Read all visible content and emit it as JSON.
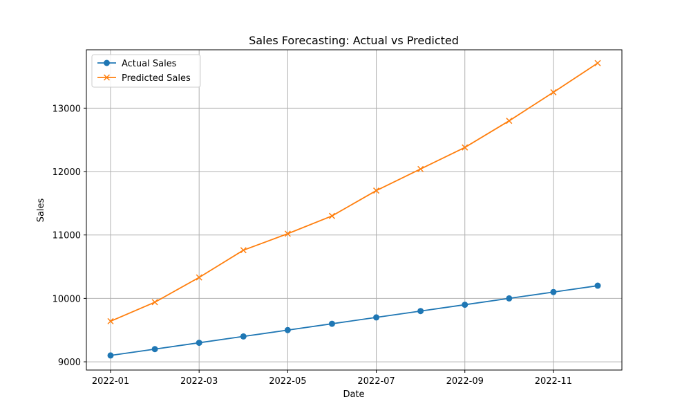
{
  "chart_data": {
    "type": "line",
    "title": "Sales Forecasting: Actual vs Predicted",
    "xlabel": "Date",
    "ylabel": "Sales",
    "x": [
      "2022-01",
      "2022-02",
      "2022-03",
      "2022-04",
      "2022-05",
      "2022-06",
      "2022-07",
      "2022-08",
      "2022-09",
      "2022-10",
      "2022-11",
      "2022-12"
    ],
    "x_ticks": [
      "2022-01",
      "2022-03",
      "2022-05",
      "2022-07",
      "2022-09",
      "2022-11"
    ],
    "y_ticks": [
      9000,
      10000,
      11000,
      12000,
      13000
    ],
    "ylim": [
      8870,
      13920
    ],
    "grid": true,
    "legend_position": "top-left",
    "series": [
      {
        "name": "Actual Sales",
        "color": "#1f77b4",
        "marker": "circle",
        "values": [
          9100,
          9200,
          9300,
          9400,
          9500,
          9600,
          9700,
          9800,
          9900,
          10000,
          10100,
          10200
        ]
      },
      {
        "name": "Predicted Sales",
        "color": "#ff7f0e",
        "marker": "x",
        "values": [
          9640,
          9940,
          10330,
          10760,
          11020,
          11300,
          11700,
          12040,
          12380,
          12800,
          13250,
          13710
        ]
      }
    ]
  }
}
